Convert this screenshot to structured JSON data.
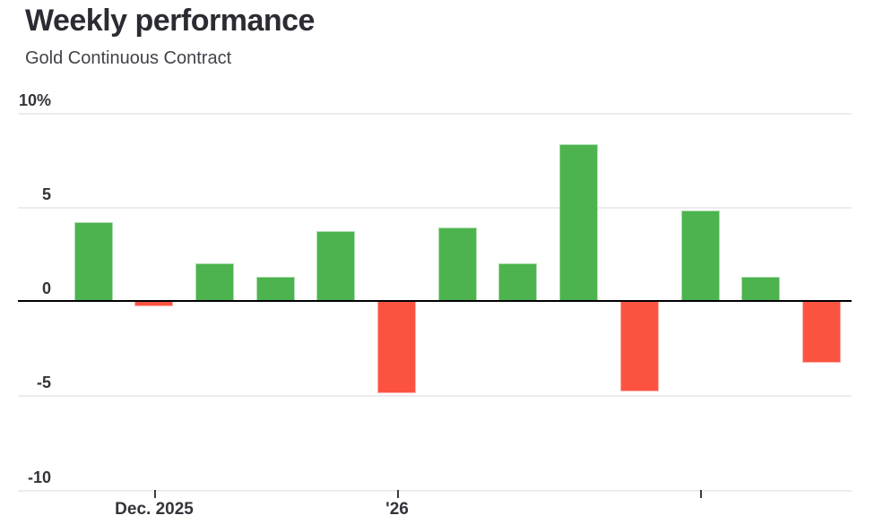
{
  "header": {
    "title": "Weekly performance",
    "subtitle": "Gold Continuous Contract"
  },
  "chart_data": {
    "type": "bar",
    "title": "Weekly performance",
    "subtitle": "Gold Continuous Contract",
    "unit": "percent",
    "description": "Weekly percent change bars, green for gains and red for losses",
    "values": [
      4.2,
      -0.3,
      2.0,
      1.3,
      3.7,
      -4.9,
      3.9,
      2.0,
      8.3,
      -4.8,
      4.8,
      1.3,
      -3.3
    ],
    "x_ticks": [
      {
        "index": 1,
        "label": "Dec. 2025"
      },
      {
        "index": 5,
        "label": "'26"
      },
      {
        "index": 10,
        "label": ""
      }
    ],
    "y_axis": {
      "range": [
        -10,
        10
      ],
      "ticks": [
        {
          "value": 10,
          "label": "10%"
        },
        {
          "value": 5,
          "label": "5"
        },
        {
          "value": 0,
          "label": "0"
        },
        {
          "value": -5,
          "label": "-5"
        },
        {
          "value": -10,
          "label": "-10"
        }
      ]
    },
    "grid": true,
    "legend": false,
    "colors": {
      "positive": "#4CB34E",
      "negative": "#FC5340",
      "grid": "#ECECEC",
      "zero_line": "#000000",
      "title_text": "#2B2B33",
      "subtitle_text": "#42424A",
      "axis_text": "#33333A"
    }
  }
}
